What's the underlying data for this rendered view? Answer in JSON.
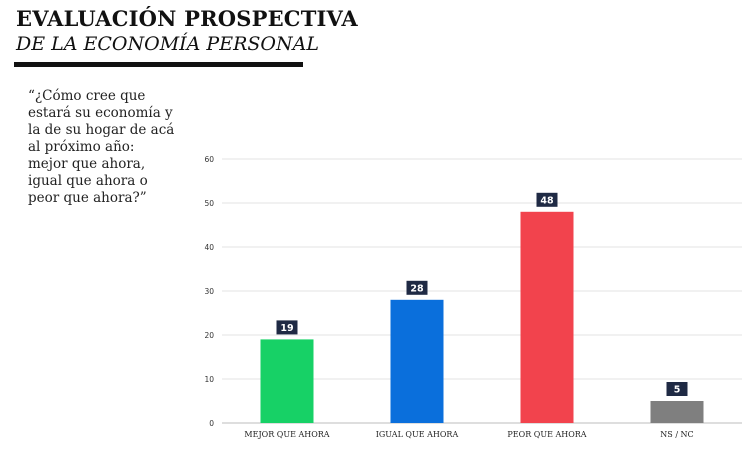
{
  "header": {
    "title": "EVALUACIÓN PROSPECTIVA",
    "subtitle": "DE LA ECONOMÍA PERSONAL"
  },
  "question": "“¿Cómo cree que\nestará su economía y\nla de su hogar de acá\nal próximo año:\nmejor que ahora,\nigual que ahora o\npeor que ahora?”",
  "chart_data": {
    "type": "bar",
    "categories": [
      "MEJOR QUE AHORA",
      "IGUAL QUE AHORA",
      "PEOR QUE AHORA",
      "NS / NC"
    ],
    "values": [
      19,
      28,
      48,
      5
    ],
    "colors": [
      "#17d166",
      "#0a6fdc",
      "#f2434d",
      "#7f7f7f"
    ],
    "ylim": [
      0,
      60
    ],
    "yticks": [
      0,
      10,
      20,
      30,
      40,
      50,
      60
    ],
    "grid": true,
    "label_box_color": "#1f2a44",
    "title": "",
    "xlabel": "",
    "ylabel": ""
  }
}
